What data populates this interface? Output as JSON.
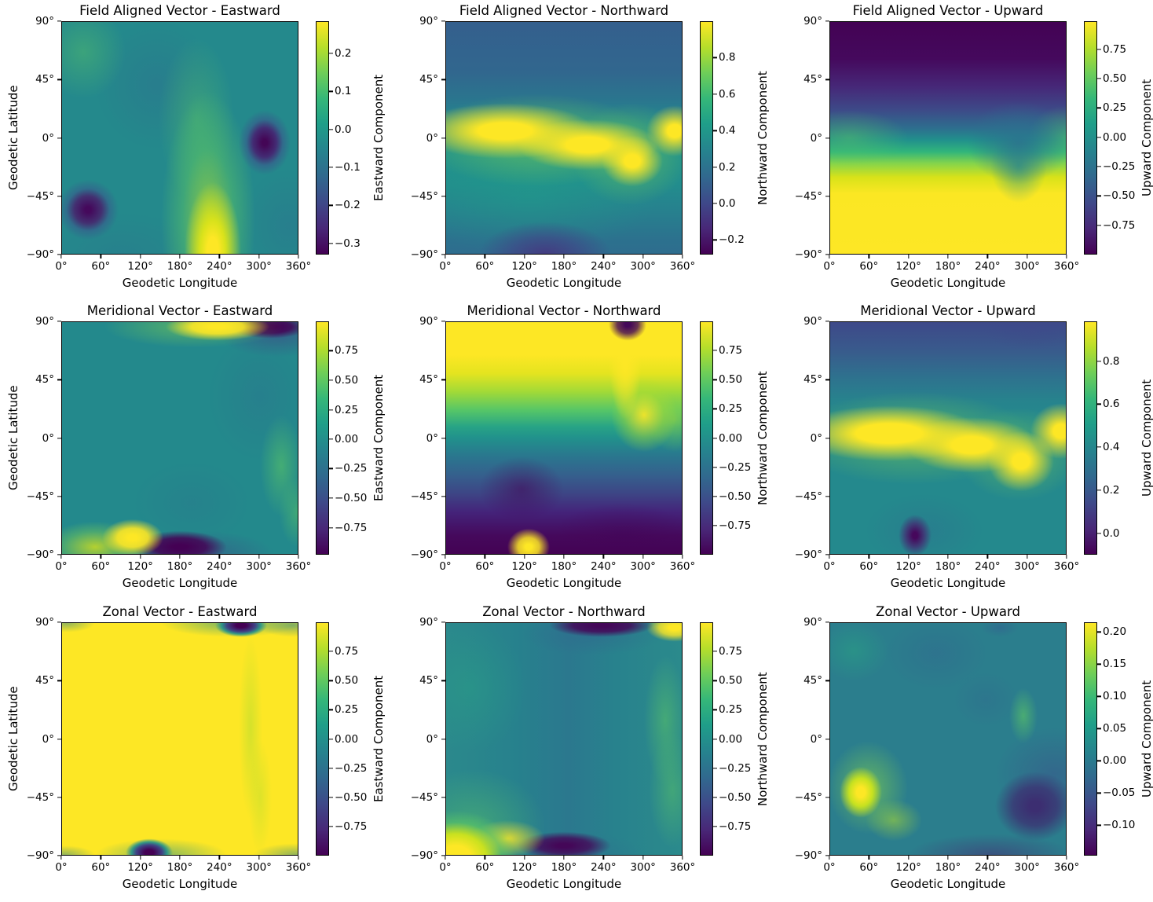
{
  "figure": {
    "layout": "3x3 grid of heatmap subplots",
    "colormap": "viridis",
    "x_axis": {
      "label": "Geodetic Longitude",
      "range": [
        0,
        360
      ],
      "tick_labels": [
        "0°",
        "60°",
        "120°",
        "180°",
        "240°",
        "300°",
        "360°"
      ],
      "tick_values": [
        0,
        60,
        120,
        180,
        240,
        300,
        360
      ]
    },
    "y_axis": {
      "label": "Geodetic Latitude",
      "range": [
        -90,
        90
      ],
      "tick_labels": [
        "90°",
        "45°",
        "0°",
        "−45°",
        "−90°"
      ],
      "tick_values": [
        90,
        45,
        0,
        -45,
        -90
      ]
    }
  },
  "chart_data": [
    {
      "type": "heatmap",
      "title": "Field Aligned Vector - Eastward",
      "xlabel": "Geodetic Longitude",
      "ylabel": "Geodetic Latitude",
      "colorbar": {
        "label": "Eastward Component",
        "vmin": -0.33,
        "vmax": 0.285,
        "tick_labels": [
          "0.2",
          "0.1",
          "0.0",
          "−0.1",
          "−0.2",
          "−0.3"
        ],
        "tick_values": [
          0.2,
          0.1,
          0.0,
          -0.1,
          -0.2,
          -0.3
        ]
      },
      "features": [
        "background ≈ 0 (teal)",
        "maximum ≈ +0.28 yellow plume near lon 235°, lat −90° extending toward the equator",
        "minima ≈ −0.33 dark spots near (315°, −5°) and (45°, −60°)",
        "mild green patch near (45°, 65°)"
      ]
    },
    {
      "type": "heatmap",
      "title": "Field Aligned Vector - Northward",
      "xlabel": "Geodetic Longitude",
      "colorbar": {
        "label": "Northward Component",
        "vmin": -0.28,
        "vmax": 1.0,
        "tick_labels": [
          "0.8",
          "0.6",
          "0.4",
          "0.2",
          "0.0",
          "−0.2"
        ],
        "tick_values": [
          0.8,
          0.6,
          0.4,
          0.2,
          0.0,
          -0.2
        ]
      },
      "features": [
        "bright yellow band ≈ +1 along magnetic equator: lat ≈ +10° in the west, dipping to ≈ −25° near lon 300°, rising again by 360°",
        "mid latitudes ≈ 0.3–0.5 (teal/blue)",
        "minimum ≈ −0.28 dark region at bottom center near (150°, −90°)"
      ]
    },
    {
      "type": "heatmap",
      "title": "Field Aligned Vector - Upward",
      "xlabel": "Geodetic Longitude",
      "colorbar": {
        "label": "Upward Component",
        "vmin": -1.0,
        "vmax": 0.99,
        "tick_labels": [
          "0.75",
          "0.50",
          "0.25",
          "0.00",
          "−0.25",
          "−0.50",
          "−0.75"
        ],
        "tick_values": [
          0.75,
          0.5,
          0.25,
          0.0,
          -0.25,
          -0.5,
          -0.75
        ]
      },
      "features": [
        "≈ −1 (dark purple) across high northern latitudes",
        "≈ +1 (yellow) across southern latitudes",
        "zero crossing near the geographic equator, pushed south to ≈ −25° around lon 280°–310°"
      ]
    },
    {
      "type": "heatmap",
      "title": "Meridional Vector - Eastward",
      "xlabel": "Geodetic Longitude",
      "ylabel": "Geodetic Latitude",
      "colorbar": {
        "label": "Eastward Component",
        "vmin": -0.98,
        "vmax": 1.0,
        "tick_labels": [
          "0.75",
          "0.50",
          "0.25",
          "0.00",
          "−0.25",
          "−0.50",
          "−0.75"
        ],
        "tick_values": [
          0.75,
          0.5,
          0.25,
          0.0,
          -0.25,
          -0.5,
          -0.75
        ]
      },
      "features": [
        "≈ 0 (teal) over most of the globe",
        "north magnetic pole singularity near (285°, 85°): yellow ≈ +1 lobe west of it along the top edge, dark ≈ −1 lobe east",
        "south magnetic pole singularity near (128°, −76°): yellow ≈ +1 lobe west, dark ≈ −1 lobe east",
        "weak green streak near (330°, −25°)"
      ]
    },
    {
      "type": "heatmap",
      "title": "Meridional Vector - Northward",
      "xlabel": "Geodetic Longitude",
      "colorbar": {
        "label": "Northward Component",
        "vmin": -1.0,
        "vmax": 1.0,
        "tick_labels": [
          "0.75",
          "0.50",
          "0.25",
          "0.00",
          "−0.25",
          "−0.50",
          "−0.75"
        ],
        "tick_values": [
          0.75,
          0.5,
          0.25,
          0.0,
          -0.25,
          -0.5,
          -0.75
        ]
      },
      "features": [
        "≈ +1 (yellow) throughout the northern hemisphere",
        "≈ −1 (dark purple) throughout the southern hemisphere",
        "transition follows the magnetic equator, deflected downward near lon 300°",
        "pinch points at the magnetic poles (≈285°, 85°) and (≈128°, −76°) with local sign reversals"
      ]
    },
    {
      "type": "heatmap",
      "title": "Meridional Vector - Upward",
      "xlabel": "Geodetic Longitude",
      "colorbar": {
        "label": "Upward Component",
        "vmin": -0.1,
        "vmax": 0.985,
        "tick_labels": [
          "0.8",
          "0.6",
          "0.4",
          "0.2",
          "0.0"
        ],
        "tick_values": [
          0.8,
          0.6,
          0.4,
          0.2,
          0.0
        ]
      },
      "features": [
        "yellow band ≈ +1 along the magnetic equator, dipping to ≈ −25° near lon 290°",
        "≈ 0.4–0.5 (teal) at mid and high latitudes, bluer at top corners",
        "minimum ≈ −0.1 dark spot at (≈130°, −76°)"
      ]
    },
    {
      "type": "heatmap",
      "title": "Zonal Vector - Eastward",
      "xlabel": "Geodetic Longitude",
      "ylabel": "Geodetic Latitude",
      "colorbar": {
        "label": "Eastward Component",
        "vmin": -1.0,
        "vmax": 1.0,
        "tick_labels": [
          "0.75",
          "0.50",
          "0.25",
          "0.00",
          "−0.25",
          "−0.50",
          "−0.75"
        ],
        "tick_values": [
          0.75,
          0.5,
          0.25,
          0.0,
          -0.25,
          -0.5,
          -0.75
        ]
      },
      "features": [
        "≈ +1 (yellow) almost everywhere",
        "narrow dark ≈ −1 notches at the magnetic poles (≈285°, 88°) and (≈130°, −84°) with teal fringes along the top and bottom edges",
        "faint duller streak near lon 290°–305°"
      ]
    },
    {
      "type": "heatmap",
      "title": "Zonal Vector - Northward",
      "xlabel": "Geodetic Longitude",
      "colorbar": {
        "label": "Northward Component",
        "vmin": -1.0,
        "vmax": 1.0,
        "tick_labels": [
          "0.75",
          "0.50",
          "0.25",
          "0.00",
          "−0.25",
          "−0.50",
          "−0.75"
        ],
        "tick_values": [
          0.75,
          0.5,
          0.25,
          0.0,
          -0.25,
          -0.5,
          -0.75
        ]
      },
      "features": [
        "≈ 0 (teal) background",
        "yellow ≈ +1 lobes: large bottom-left corner (lon < 110°, lat < −60°) and small top-right corner (lon > 290°, lat > 84°)",
        "dark ≈ −1 streaks east of the south magnetic pole (130°–260°, ≈ −80°) and west of the north magnetic pole (180°–280°, ≈ 87°)",
        "light green band near lon 310°–340°"
      ]
    },
    {
      "type": "heatmap",
      "title": "Zonal Vector - Upward",
      "xlabel": "Geodetic Longitude",
      "colorbar": {
        "label": "Upward Component",
        "vmin": -0.147,
        "vmax": 0.215,
        "tick_labels": [
          "0.20",
          "0.15",
          "0.10",
          "0.05",
          "0.00",
          "−0.05",
          "−0.10"
        ],
        "tick_values": [
          0.2,
          0.15,
          0.1,
          0.05,
          0.0,
          -0.05,
          -0.1
        ]
      },
      "features": [
        "background ≈ 0 (teal)",
        "maximum ≈ +0.21 yellow-green blob near (50°, −45°) tapering toward the south magnetic pole (≈128°, −77°)",
        "minimum ≈ −0.13 dark purple region near (310°, −55°) and along lat ≈ −80° east of 130°",
        "light green patch near (300°, 15°); bluish patches near (160°, 60°)"
      ]
    }
  ]
}
